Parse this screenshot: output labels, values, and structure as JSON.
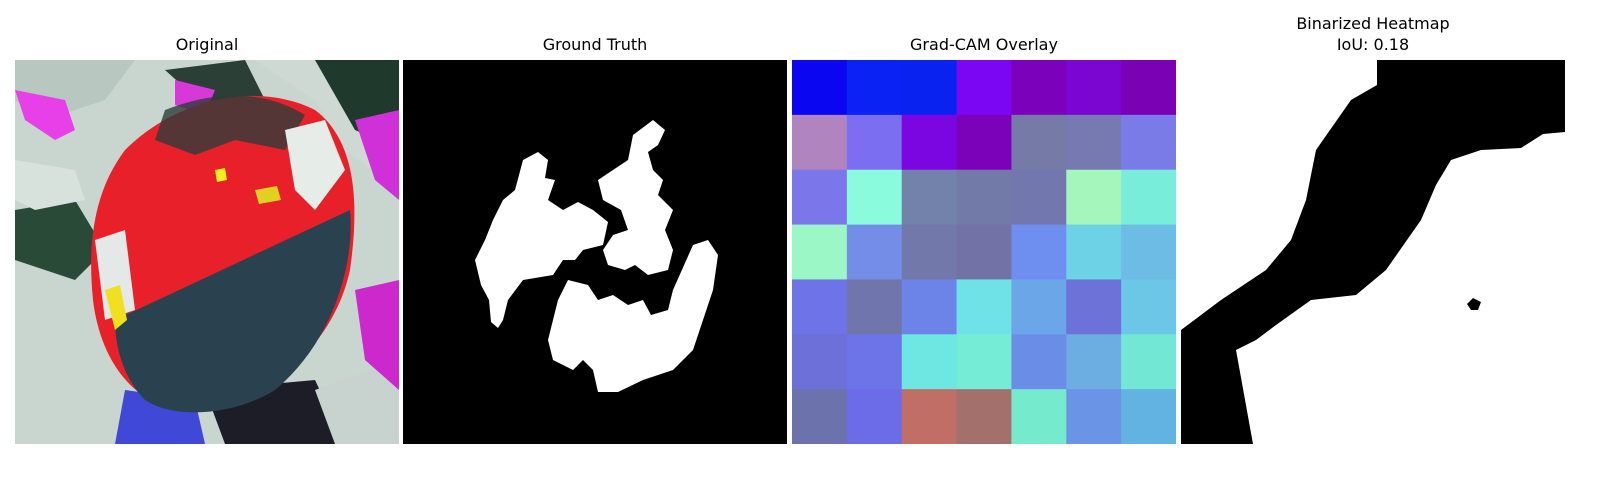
{
  "panels": [
    {
      "title": "Original"
    },
    {
      "title": "Ground Truth"
    },
    {
      "title": "Grad-CAM Overlay"
    },
    {
      "title_lines": [
        "Binarized Heatmap",
        "IoU: 0.18"
      ]
    }
  ],
  "gradcam_grid": [
    [
      "#0a06f2",
      "#0a22f4",
      "#0a22f0",
      "#7b06f4",
      "#7b02ba",
      "#7b06d2",
      "#7b02b4"
    ],
    [
      "#b084be",
      "#7b6ef0",
      "#7b06e2",
      "#7b02b8",
      "#767aa6",
      "#767ab0",
      "#7b7be8"
    ],
    [
      "#7b76ea",
      "#8bfbde",
      "#7282aa",
      "#727aa8",
      "#7278ae",
      "#a4f6bc",
      "#78eeda"
    ],
    [
      "#9bf8c6",
      "#748ee8",
      "#7278aa",
      "#7272a6",
      "#6e8ef0",
      "#6ed2e6",
      "#6cbce6"
    ],
    [
      "#6e74e8",
      "#7076ac",
      "#6c84e8",
      "#6ee2e6",
      "#6aa6e8",
      "#6c72d8",
      "#6cc6e6"
    ],
    [
      "#6c70d8",
      "#6c74e8",
      "#6ee6e2",
      "#74ecd6",
      "#6a8ee8",
      "#6caee2",
      "#72e8d4"
    ],
    [
      "#6c72ac",
      "#6c6ce8",
      "#c06e66",
      "#a4706c",
      "#76eacc",
      "#6a94e6",
      "#62b2e2"
    ]
  ]
}
